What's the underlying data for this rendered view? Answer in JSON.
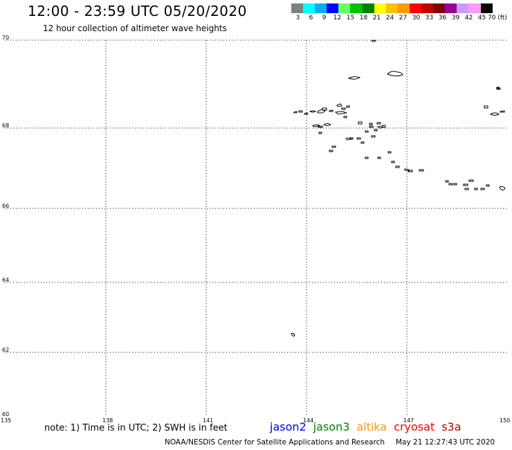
{
  "header": {
    "title": "12:00 - 23:59 UTC 05/20/2020",
    "subtitle": "12 hour collection of altimeter wave heights"
  },
  "colorbar": {
    "colors": [
      "#808080",
      "#00ffff",
      "#00b0f0",
      "#0000ff",
      "#66ff66",
      "#00c000",
      "#008000",
      "#ffff00",
      "#ffc000",
      "#ff9900",
      "#ff0000",
      "#c00000",
      "#800000",
      "#990099",
      "#cc99ff",
      "#ff99ff",
      "#000000"
    ],
    "labels": [
      "3",
      "6",
      "9",
      "12",
      "15",
      "18",
      "21",
      "24",
      "27",
      "30",
      "33",
      "36",
      "39",
      "42",
      "45",
      "70 (ft)"
    ]
  },
  "map": {
    "lat_ticks": [
      "70",
      "68",
      "66",
      "64",
      "62",
      "60"
    ],
    "lon_ticks": [
      "135",
      "138",
      "141",
      "144",
      "147",
      "150"
    ]
  },
  "footer": {
    "note": "note: 1) Time is in UTC; 2) SWH is in feet",
    "satellites": [
      {
        "name": "jason2",
        "color": "#0000ff"
      },
      {
        "name": "jason3",
        "color": "#008000"
      },
      {
        "name": "altika",
        "color": "#ff9900"
      },
      {
        "name": "cryosat",
        "color": "#ff0000"
      },
      {
        "name": "s3a",
        "color": "#c00000"
      }
    ],
    "credit": "NOAA/NESDIS Center for Satellite Applications and Research",
    "timestamp": "May 21 12:27:43 UTC 2020"
  }
}
